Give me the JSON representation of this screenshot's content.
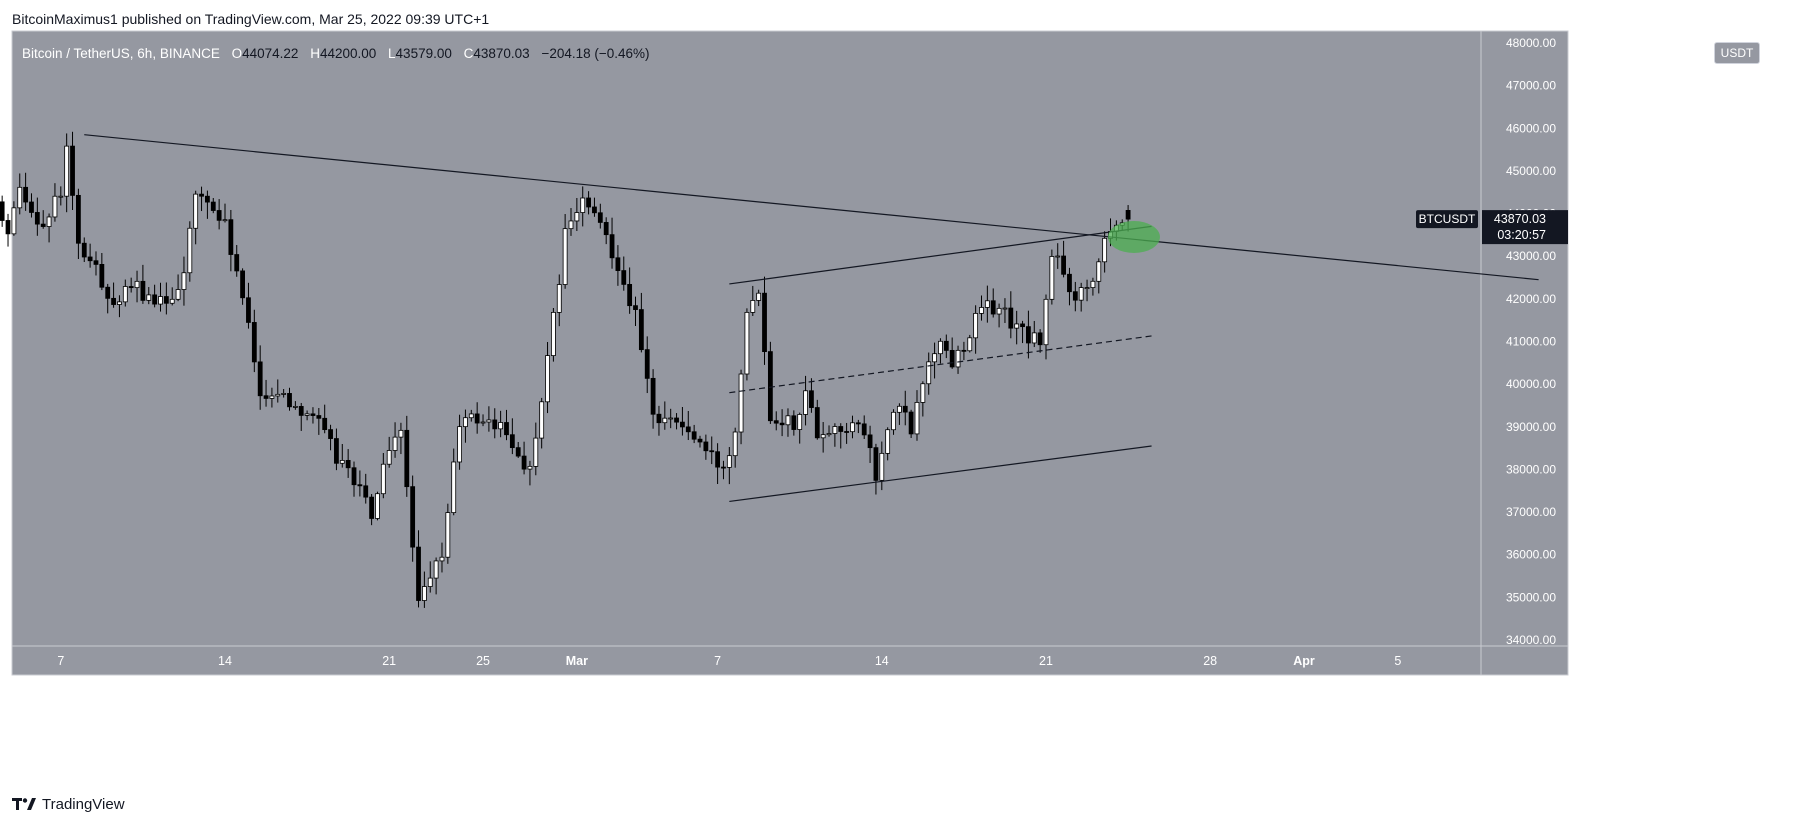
{
  "publisher": "BitcoinMaximus1 published on TradingView.com, Mar 25, 2022 09:39 UTC+1",
  "legend": {
    "symbol": "Bitcoin / TetherUS, 6h, BINANCE",
    "open_label": "O",
    "open": "44074.22",
    "high_label": "H",
    "high": "44200.00",
    "low_label": "L",
    "low": "43579.00",
    "close_label": "C",
    "close": "43870.03",
    "change": "−204.18 (−0.46%)"
  },
  "currency": "USDT",
  "footer": "TradingView",
  "colors": {
    "background": "#9598a1",
    "up_candle": "#ffffff",
    "down_candle": "#000000",
    "trendline": "#131722",
    "highlight": "#4caf50"
  },
  "chart_data": {
    "type": "candlestick",
    "ticker": "BTCUSDT",
    "last_price": "43870.03",
    "countdown": "03:20:57",
    "y_range": [
      34000,
      48000
    ],
    "y_ticks": [
      "48000.00",
      "47000.00",
      "46000.00",
      "45000.00",
      "44000.00",
      "43000.00",
      "42000.00",
      "41000.00",
      "40000.00",
      "39000.00",
      "38000.00",
      "37000.00",
      "36000.00",
      "35000.00",
      "34000.00"
    ],
    "x_ticks": [
      {
        "label": "7",
        "day": 7
      },
      {
        "label": "14",
        "day": 14
      },
      {
        "label": "21",
        "day": 21
      },
      {
        "label": "25",
        "day": 25
      },
      {
        "label": "Mar",
        "day": 29
      },
      {
        "label": "7",
        "day": 35
      },
      {
        "label": "14",
        "day": 42
      },
      {
        "label": "21",
        "day": 49
      },
      {
        "label": "28",
        "day": 56
      },
      {
        "label": "Apr",
        "day": 60
      },
      {
        "label": "5",
        "day": 64
      }
    ],
    "anchors": [
      [
        0,
        41600
      ],
      [
        0.75,
        41600
      ],
      [
        1.5,
        41500
      ],
      [
        2.5,
        42300
      ],
      [
        3.5,
        43000
      ],
      [
        3.75,
        44100
      ],
      [
        4.25,
        44500
      ],
      [
        5,
        43400
      ],
      [
        5.5,
        44600
      ],
      [
        6.5,
        43700
      ],
      [
        7.25,
        44500
      ],
      [
        7.5,
        45500
      ],
      [
        8,
        43200
      ],
      [
        8.5,
        42900
      ],
      [
        9.5,
        41900
      ],
      [
        10.5,
        42300
      ],
      [
        11.25,
        41800
      ],
      [
        12,
        42100
      ],
      [
        12.5,
        42700
      ],
      [
        13,
        44400
      ],
      [
        13.5,
        44300
      ],
      [
        14.25,
        43700
      ],
      [
        15,
        42000
      ],
      [
        15.75,
        39800
      ],
      [
        16.5,
        39800
      ],
      [
        17.25,
        39500
      ],
      [
        18,
        39300
      ],
      [
        19,
        38300
      ],
      [
        19.75,
        37800
      ],
      [
        20.5,
        36900
      ],
      [
        21,
        38000
      ],
      [
        21.75,
        38900
      ],
      [
        22.25,
        36300
      ],
      [
        22.5,
        34800
      ],
      [
        23.5,
        36000
      ],
      [
        24.25,
        39100
      ],
      [
        25,
        39200
      ],
      [
        26,
        39000
      ],
      [
        26.5,
        38500
      ],
      [
        27.25,
        38000
      ],
      [
        27.75,
        39500
      ],
      [
        28.25,
        41500
      ],
      [
        28.75,
        43500
      ],
      [
        29.5,
        44300
      ],
      [
        30.5,
        43500
      ],
      [
        31,
        42800
      ],
      [
        31.75,
        41600
      ],
      [
        32.5,
        39200
      ],
      [
        33,
        39300
      ],
      [
        34,
        38900
      ],
      [
        34.75,
        38400
      ],
      [
        35.5,
        38000
      ],
      [
        36,
        39000
      ],
      [
        36.5,
        41800
      ],
      [
        37,
        42300
      ],
      [
        37.5,
        39300
      ],
      [
        38.5,
        39100
      ],
      [
        39,
        39800
      ],
      [
        39.5,
        38900
      ],
      [
        40.75,
        39000
      ],
      [
        41.5,
        38900
      ],
      [
        42,
        37800
      ],
      [
        42.5,
        38900
      ],
      [
        43,
        39500
      ],
      [
        43.5,
        38900
      ],
      [
        44.25,
        40600
      ],
      [
        44.75,
        41000
      ],
      [
        45.25,
        40500
      ],
      [
        46,
        41200
      ],
      [
        46.5,
        41800
      ],
      [
        47.25,
        41800
      ],
      [
        48,
        41300
      ],
      [
        48.5,
        41100
      ],
      [
        49,
        41000
      ],
      [
        49.5,
        42900
      ],
      [
        49.75,
        43000
      ],
      [
        50,
        42500
      ],
      [
        50.5,
        42100
      ],
      [
        51,
        42300
      ],
      [
        51.5,
        42900
      ],
      [
        51.75,
        43600
      ],
      [
        52.25,
        43800
      ],
      [
        52.5,
        43870.03
      ]
    ],
    "trendlines": [
      {
        "name": "descending-resistance",
        "style": "solid",
        "from": [
          8,
          45850
        ],
        "to": [
          70,
          42450
        ]
      },
      {
        "name": "channel-upper",
        "style": "solid",
        "from": [
          35.5,
          42350
        ],
        "to": [
          53.5,
          43700
        ]
      },
      {
        "name": "channel-middle",
        "style": "dashed",
        "from": [
          35.5,
          39800
        ],
        "to": [
          53.5,
          41130
        ]
      },
      {
        "name": "channel-lower",
        "style": "solid",
        "from": [
          35.5,
          37250
        ],
        "to": [
          53.5,
          38550
        ]
      }
    ],
    "highlight": {
      "shape": "ellipse",
      "center": [
        52.75,
        43450
      ]
    }
  }
}
